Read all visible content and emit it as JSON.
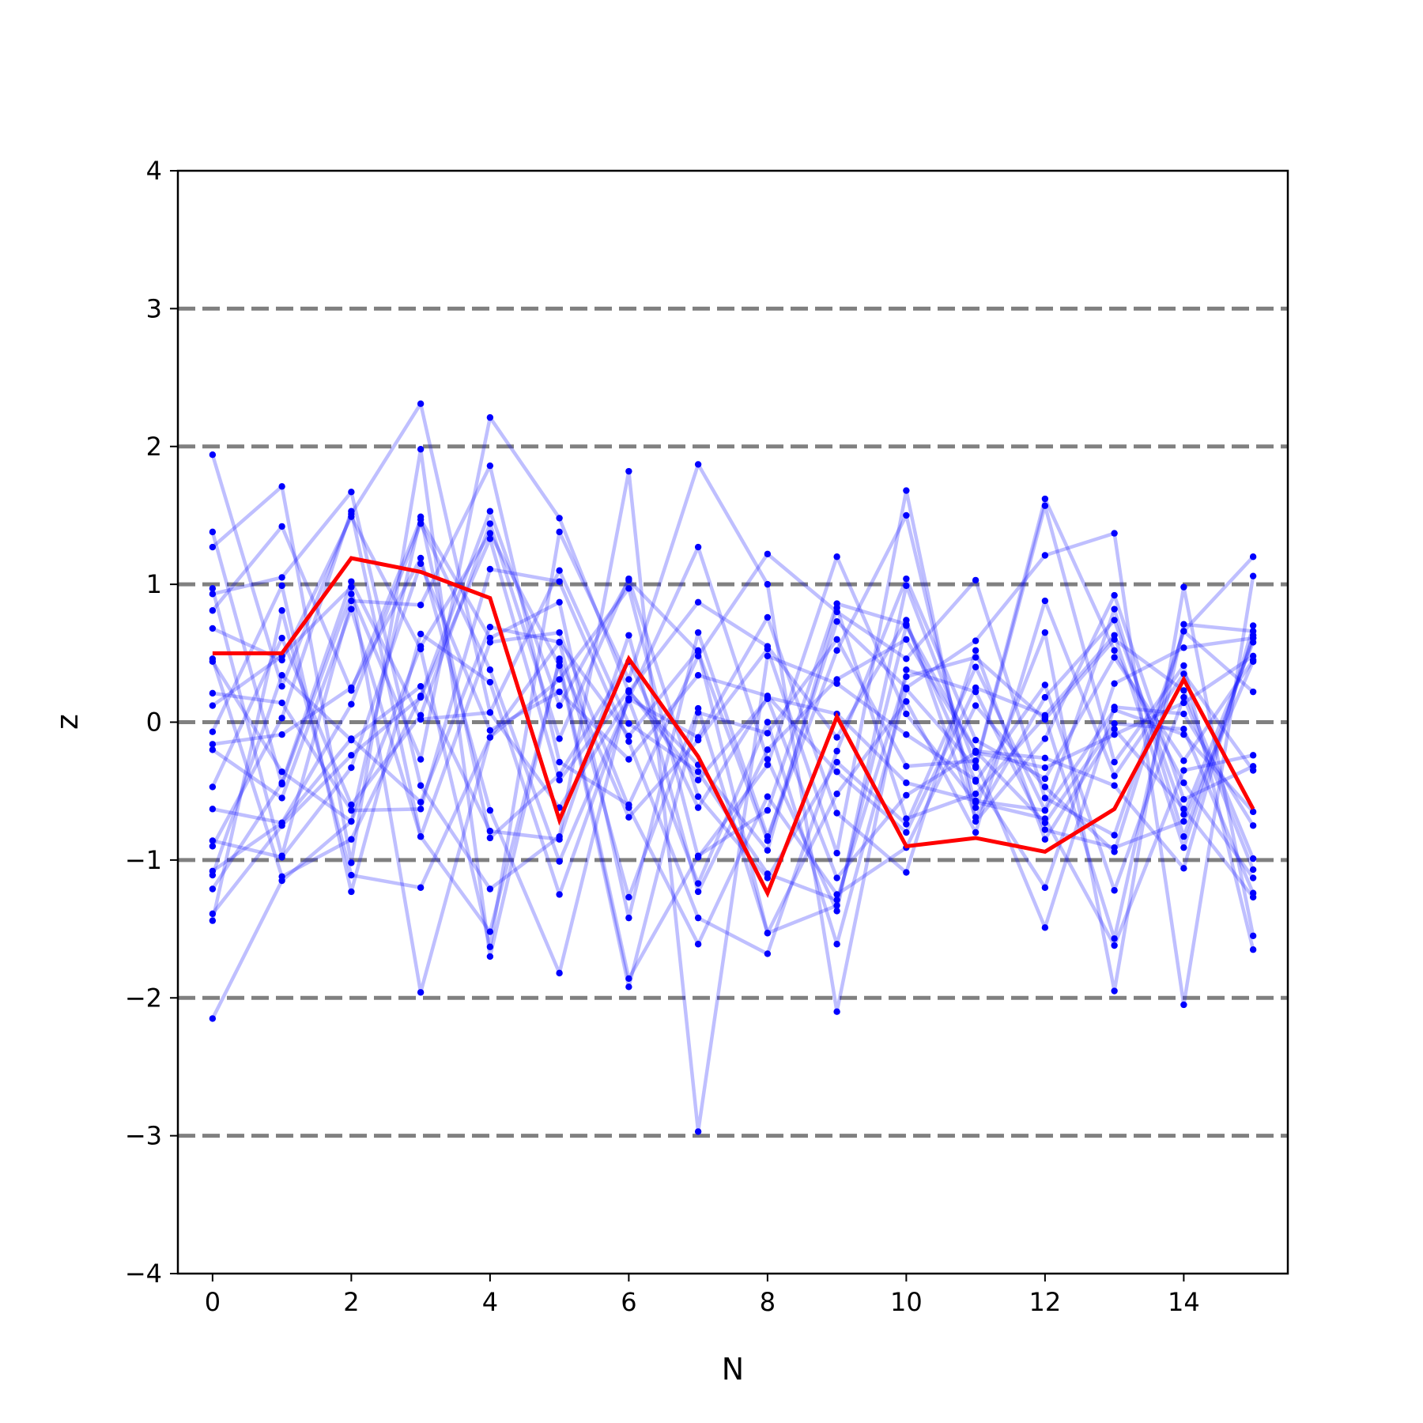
{
  "chart_data": {
    "type": "line",
    "title": "",
    "xlabel": "N",
    "ylabel": "z",
    "xlim": [
      -0.5,
      15.5
    ],
    "ylim": [
      -4,
      4
    ],
    "x": [
      0,
      1,
      2,
      3,
      4,
      5,
      6,
      7,
      8,
      9,
      10,
      11,
      12,
      13,
      14,
      15
    ],
    "xticks": [
      0,
      2,
      4,
      6,
      8,
      10,
      12,
      14
    ],
    "yticks": [
      -4,
      -3,
      -2,
      -1,
      0,
      1,
      2,
      3,
      4
    ],
    "ytick_labels": [
      "−4",
      "−3",
      "−2",
      "−1",
      "0",
      "1",
      "2",
      "3",
      "4"
    ],
    "reference_lines": [
      -3,
      -2,
      -1,
      0,
      1,
      2,
      3
    ],
    "reference_line_style": "dashed gray",
    "highlight_series": {
      "color": "#ff0000",
      "values": [
        0.5,
        0.5,
        1.19,
        1.09,
        0.9,
        -0.71,
        0.46,
        -0.25,
        -1.24,
        0.04,
        -0.9,
        -0.84,
        -0.94,
        -0.63,
        0.31,
        -0.63
      ]
    },
    "background_series_color": "#0000ff",
    "background_series": [
      [
        1.94,
        0.26,
        1.51,
        2.31,
        0.07,
        -0.62,
        0.17,
        1.27,
        -0.27,
        -1.37,
        0.99,
        -0.32,
        1.62,
        0.52,
        -0.44,
        -1.13
      ],
      [
        1.38,
        -0.45,
        0.93,
        -0.27,
        2.21,
        1.48,
        0.22,
        -0.31,
        -0.93,
        0.83,
        -0.7,
        -0.52,
        0.04,
        -1.57,
        0.71,
        0.66
      ],
      [
        1.27,
        1.71,
        -1.02,
        1.98,
        -1.7,
        0.46,
        -0.69,
        -0.13,
        0.53,
        -0.95,
        1.68,
        -0.72,
        -0.12,
        0.92,
        -0.56,
        -0.32
      ],
      [
        0.97,
        -0.97,
        0.88,
        0.85,
        1.86,
        -0.29,
        -0.6,
        0.48,
        1.22,
        0.8,
        0.46,
        1.03,
        -0.55,
        -0.82,
        0.66,
        1.2
      ],
      [
        0.93,
        1.05,
        1.67,
        -0.46,
        -1.21,
        -0.83,
        1.82,
        -2.97,
        0.48,
        0.28,
        -0.09,
        -0.42,
        -1.2,
        0.28,
        0.54,
        0.61
      ],
      [
        0.81,
        1.42,
        0.23,
        1.47,
        0.61,
        0.87,
        -1.42,
        0.65,
        -0.83,
        0.52,
        1.5,
        -0.62,
        0.65,
        -1.95,
        0.98,
        -1.55
      ],
      [
        0.68,
        0.45,
        1.49,
        0.53,
        -1.63,
        1.38,
        0.31,
        1.87,
        1.0,
        -2.1,
        0.38,
        0.22,
        -0.78,
        -0.91,
        -0.72,
        0.44
      ],
      [
        0.46,
        -1.12,
        -0.85,
        0.19,
        1.53,
        0.12,
        1.03,
        0.51,
        -0.86,
        0.73,
        0.25,
        0.59,
        1.21,
        1.37,
        -2.05,
        1.06
      ],
      [
        0.44,
        -0.36,
        -0.72,
        0.55,
        1.37,
        0.41,
        -1.92,
        0.07,
        -0.08,
        0.6,
        -0.32,
        -0.28,
        -1.49,
        0.11,
        0.06,
        -0.75
      ],
      [
        0.21,
        0.14,
        -0.64,
        -0.63,
        1.11,
        1.02,
        -0.14,
        -1.42,
        -1.68,
        -0.21,
        1.04,
        -0.13,
        -0.41,
        0.47,
        -0.28,
        0.45
      ],
      [
        0.12,
        0.48,
        0.98,
        -1.96,
        -0.11,
        0.31,
        0.97,
        -0.98,
        -0.31,
        1.2,
        0.06,
        -0.58,
        -0.7,
        -1.62,
        -0.35,
        -0.24
      ],
      [
        -0.07,
        0.99,
        -1.23,
        0.64,
        0.29,
        -1.25,
        0.17,
        -0.11,
        0.76,
        -0.66,
        -1.09,
        0.52,
        -0.85,
        -0.05,
        -0.63,
        -1.27
      ],
      [
        -0.16,
        -0.09,
        0.25,
        1.19,
        -0.64,
        -1.82,
        0.22,
        0.87,
        0.55,
        -0.11,
        0.74,
        -0.69,
        0.18,
        0.74,
        -0.67,
        0.58
      ],
      [
        -0.2,
        -0.55,
        0.82,
        -0.83,
        0.58,
        0.65,
        -0.62,
        -1.61,
        -0.54,
        -1.25,
        -0.91,
        0.12,
        -0.47,
        -0.94,
        0.66,
        0.22
      ],
      [
        -0.47,
        0.61,
        -0.6,
        0.05,
        1.44,
        -0.12,
        1.04,
        -0.54,
        -1.13,
        -0.29,
        -0.74,
        0.4,
        -0.64,
        0.09,
        -0.09,
        -0.65
      ],
      [
        -0.63,
        -0.73,
        0.13,
        1.44,
        0.38,
        -1.01,
        0.16,
        -1.17,
        0.0,
        -1.61,
        0.24,
        -0.33,
        1.57,
        -0.29,
        0.41,
        -1.65
      ],
      [
        -0.86,
        -0.98,
        -0.33,
        1.15,
        -0.06,
        0.22,
        -0.27,
        0.34,
        0.19,
        -0.36,
        -0.8,
        0.25,
        0.05,
        0.63,
        -0.91,
        0.63
      ],
      [
        -0.9,
        0.03,
        1.53,
        -0.83,
        -1.52,
        0.44,
        -1.86,
        -0.97,
        -0.64,
        0.86,
        0.71,
        -0.43,
        0.27,
        -1.22,
        0.18,
        -1.07
      ],
      [
        -1.08,
        -0.73,
        -0.12,
        -0.58,
        0.69,
        0.58,
        -1.27,
        0.1,
        -1.53,
        -0.52,
        0.15,
        -0.8,
        0.88,
        -0.39,
        0.35,
        -0.35
      ],
      [
        -1.11,
        0.34,
        -0.13,
        0.26,
        -0.79,
        -0.85,
        0.63,
        -1.23,
        -0.2,
        0.31,
        0.6,
        -0.21,
        -0.26,
        -0.46,
        -1.06,
        0.7
      ],
      [
        -1.21,
        -0.44,
        1.02,
        0.02,
        0.07,
        1.1,
        -0.01,
        -0.36,
        -1.1,
        -1.29,
        0.33,
        0.47,
        0.02,
        0.6,
        0.23,
        -0.99
      ],
      [
        -1.39,
        -0.75,
        -0.24,
        0.18,
        1.33,
        -0.42,
        0.23,
        -0.42,
        0.17,
        -1.13,
        -0.53,
        -0.22,
        -0.33,
        -0.09,
        0.14,
        0.48
      ],
      [
        -1.44,
        0.81,
        -1.11,
        -1.2,
        -0.11,
        0.58,
        -0.1,
        0.52,
        -1.53,
        -1.33,
        0.7,
        -0.21,
        -0.73,
        -0.01,
        -0.05,
        -1.24
      ],
      [
        -2.15,
        -1.15,
        -0.72,
        1.49,
        -0.84,
        -0.38,
        0.44,
        -0.62,
        0.18,
        0.06,
        -0.44,
        -0.57,
        -0.64,
        0.82,
        -0.83,
        0.61
      ]
    ]
  }
}
